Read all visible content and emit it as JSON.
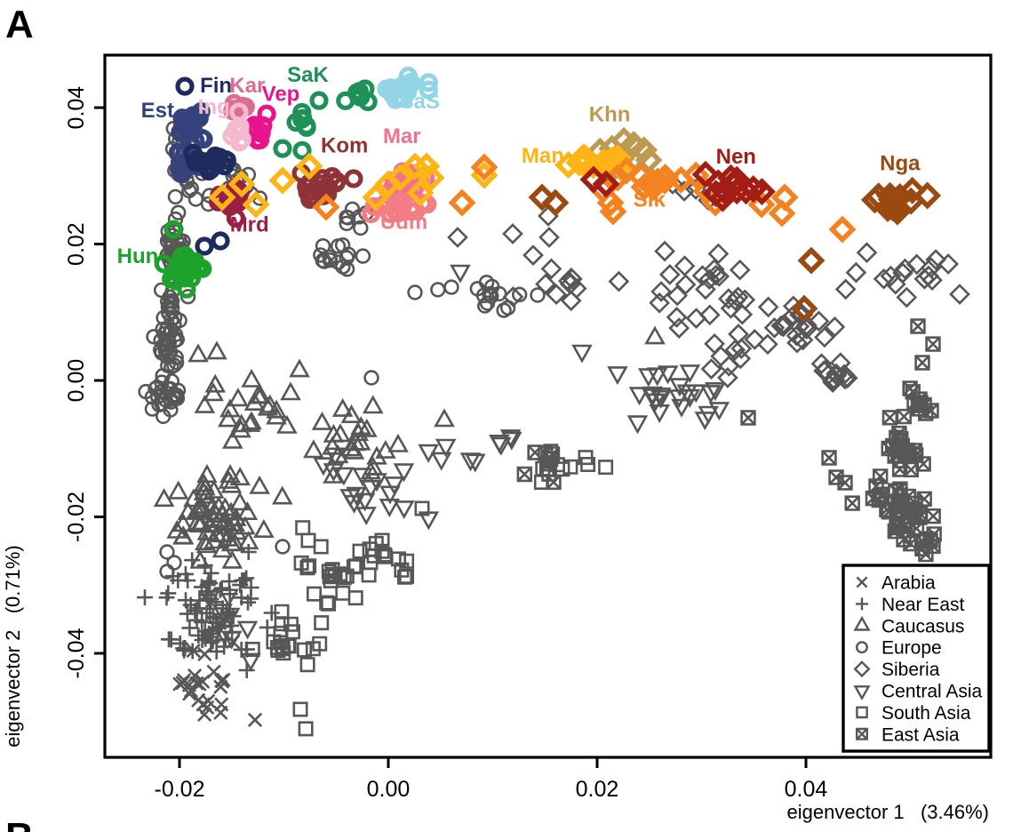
{
  "panel": {
    "label": "A",
    "next_label": "B"
  },
  "axes": {
    "x": {
      "label": "eigenvector 1   (3.46%)",
      "ticks": [
        -0.02,
        0.0,
        0.02,
        0.04
      ],
      "tick_labels": [
        "-0.02",
        "0.00",
        "0.02",
        "0.04"
      ]
    },
    "y": {
      "label": "eigenvector 2   (0.71%)",
      "ticks": [
        0.04,
        0.02,
        0.0,
        -0.02,
        -0.04
      ],
      "tick_labels": [
        "0.04",
        "0.02",
        "0.00",
        "-0.02",
        "-0.04"
      ]
    }
  },
  "legend": {
    "entries": [
      {
        "shape": "x",
        "label": "Arabia"
      },
      {
        "shape": "plus",
        "label": "Near East"
      },
      {
        "shape": "triangle",
        "label": "Caucasus"
      },
      {
        "shape": "circle",
        "label": "Europe"
      },
      {
        "shape": "diamond",
        "label": "Siberia"
      },
      {
        "shape": "triangle-down",
        "label": "Central Asia"
      },
      {
        "shape": "square",
        "label": "South Asia"
      },
      {
        "shape": "square-x",
        "label": "East Asia"
      }
    ]
  },
  "chart_data": {
    "type": "scatter",
    "title": "",
    "xlabel": "eigenvector 1 (3.46%)",
    "ylabel": "eigenvector 2 (0.71%)",
    "xlim": [
      -0.02715,
      0.0577
    ],
    "ylim": [
      -0.05525,
      0.0477
    ],
    "grid": false,
    "legend_position": "bottom-right",
    "point_color_gray": "#575757",
    "regions": [
      {
        "id": "arabia",
        "label": "Arabia",
        "marker": "x",
        "clusters": [
          [
            -0.01813,
            -0.04521,
            0.0024,
            0.0042,
            24
          ]
        ],
        "points": [
          [
            -0.01277,
            -0.04977
          ],
          [
            -0.01489,
            -0.03831
          ]
        ]
      },
      {
        "id": "neareast",
        "label": "Near East",
        "marker": "plus",
        "clusters": [
          [
            -0.01745,
            -0.03388,
            0.0036,
            0.0068,
            80
          ]
        ],
        "points": []
      },
      {
        "id": "caucasus",
        "label": "Caucasus",
        "marker": "triangle",
        "clusters": [
          [
            -0.0166,
            -0.02046,
            0.0036,
            0.005,
            60
          ],
          [
            -0.01294,
            -0.00521,
            0.0041,
            0.0046,
            20
          ],
          [
            -0.00298,
            -0.01003,
            0.0043,
            0.0039,
            22
          ]
        ],
        "points": [
          [
            -0.01821,
            0.00365
          ],
          [
            -0.01643,
            0.00404
          ],
          [
            -0.00936,
            -0.00195
          ],
          [
            -0.00851,
            0.00143
          ],
          [
            0.00536,
            -0.00586
          ],
          [
            0.02553,
            0.00625
          ]
        ]
      },
      {
        "id": "europe",
        "label": "Europe",
        "marker": "circle",
        "clusters": [
          [
            -0.01957,
            0.03362,
            0.0012,
            0.0037,
            32
          ],
          [
            -0.02034,
            0.01954,
            0.0009,
            0.005,
            38
          ],
          [
            -0.02094,
            0.00651,
            0.0009,
            0.0055,
            40
          ],
          [
            -0.02136,
            -0.00248,
            0.0013,
            0.0022,
            26
          ],
          [
            -0.01549,
            0.02815,
            0.0032,
            0.0029,
            22
          ],
          [
            -0.00553,
            0.01798,
            0.0022,
            0.0021,
            14
          ],
          [
            -0.00357,
            0.02385,
            0.0014,
            0.0012,
            7
          ],
          [
            0.00919,
            0.01277,
            0.0036,
            0.0021,
            14
          ]
        ],
        "points": [
          [
            0.00255,
            0.0129
          ],
          [
            0.00604,
            0.01368
          ],
          [
            -0.00162,
            0.00039
          ],
          [
            -0.01013,
            -0.02436
          ],
          [
            -0.02119,
            -0.02515
          ],
          [
            -0.02051,
            -0.02671
          ],
          [
            -0.02119,
            -0.02801
          ],
          [
            0.0143,
            0.01251
          ]
        ]
      },
      {
        "id": "siberia",
        "label": "Siberia",
        "marker": "diamond",
        "clusters": [
          [
            0.02919,
            0.01277,
            0.0047,
            0.0042,
            26
          ],
          [
            0.03855,
            0.0086,
            0.0036,
            0.0039,
            20
          ],
          [
            0.04315,
            0.00052,
            0.0015,
            0.0018,
            14
          ],
          [
            0.04877,
            0.01538,
            0.0036,
            0.0029,
            14
          ],
          [
            0.0166,
            0.01329,
            0.0036,
            0.0037,
            10
          ],
          [
            0.03277,
            0.00469,
            0.0024,
            0.0031,
            10
          ]
        ],
        "points": [
          [
            0.00664,
            0.02098
          ],
          [
            0.01191,
            0.0215
          ],
          [
            0.01387,
            0.01837
          ],
          [
            0.01532,
            0.02411
          ],
          [
            0.0154,
            0.02098
          ],
          [
            0.02723,
            0.0288
          ],
          [
            0.02834,
            0.02776
          ],
          [
            0.02945,
            0.02802
          ],
          [
            0.03064,
            0.02645
          ],
          [
            0.05472,
            0.01264
          ],
          [
            0.05362,
            0.01707
          ],
          [
            0.05243,
            0.01772
          ]
        ]
      },
      {
        "id": "centralasia",
        "label": "Central Asia",
        "marker": "triangle-down",
        "clusters": [
          [
            -0.01566,
            -0.03544,
            0.0019,
            0.0037,
            10
          ],
          [
            -0.00315,
            -0.01564,
            0.0044,
            0.0037,
            18
          ],
          [
            0.00579,
            -0.01094,
            0.0022,
            0.0016,
            5
          ],
          [
            0.02732,
            -0.00235,
            0.0041,
            0.0034,
            24
          ],
          [
            0.01149,
            -0.00938,
            0.0015,
            0.0016,
            4
          ]
        ],
        "points": [
          [
            0.00689,
            0.01603
          ],
          [
            0.01855,
            0.0043
          ],
          [
            -0.01319,
            -0.04091
          ]
        ]
      },
      {
        "id": "southasia",
        "label": "South Asia",
        "marker": "square",
        "clusters": [
          [
            -0.00979,
            -0.03831,
            0.0024,
            0.0037,
            20
          ],
          [
            -0.00553,
            -0.02827,
            0.0032,
            0.005,
            22
          ],
          [
            0.00026,
            -0.02658,
            0.002,
            0.0026,
            13
          ],
          [
            0.0177,
            -0.0129,
            0.0034,
            0.0026,
            11
          ]
        ],
        "points": [
          [
            0.00323,
            -0.01876
          ],
          [
            -0.00766,
            -0.02345
          ],
          [
            -0.0006,
            -0.02345
          ],
          [
            -0.00843,
            -0.04821
          ],
          [
            -0.00791,
            -0.05107
          ]
        ]
      },
      {
        "id": "eastasia",
        "label": "East Asia",
        "marker": "square-x",
        "clusters": [
          [
            0.04987,
            -0.02007,
            0.002,
            0.0042,
            36
          ],
          [
            0.0497,
            -0.01003,
            0.0017,
            0.0034,
            22
          ],
          [
            0.05047,
            -0.00352,
            0.0011,
            0.0021,
            7
          ],
          [
            0.04579,
            -0.01746,
            0.0019,
            0.0012,
            5
          ],
          [
            0.01557,
            -0.01199,
            0.0021,
            0.002,
            7
          ]
        ],
        "points": [
          [
            0.03447,
            -0.00547
          ],
          [
            0.04221,
            -0.01133
          ],
          [
            0.04289,
            -0.0142
          ],
          [
            0.05115,
            0.00261
          ],
          [
            0.04996,
            -0.00117
          ],
          [
            0.05098,
            -0.00326
          ],
          [
            0.052,
            -0.00443
          ],
          [
            0.04374,
            -0.01498
          ],
          [
            0.04672,
            -0.0155
          ],
          [
            0.04936,
            -0.02332
          ],
          [
            0.05191,
            -0.02345
          ],
          [
            0.05217,
            0.00534
          ],
          [
            0.05072,
            0.00795
          ]
        ]
      }
    ],
    "populations": [
      {
        "id": "est",
        "label": "Est",
        "color": "#35427c",
        "marker": "circle",
        "label_at": [
          -0.0221,
          0.0386
        ],
        "clusters": [
          [
            -0.01889,
            0.03726,
            0.0012,
            0.0021,
            20
          ],
          [
            -0.01932,
            0.03231,
            0.0009,
            0.0024,
            14
          ]
        ],
        "points": []
      },
      {
        "id": "fin",
        "label": "Fin",
        "color": "#1f2a5e",
        "marker": "circle",
        "label_at": [
          -0.0165,
          0.0422
        ],
        "clusters": [
          [
            -0.01804,
            0.03257,
            0.0014,
            0.0016,
            12
          ],
          [
            -0.01591,
            0.03192,
            0.0007,
            0.001,
            5
          ]
        ],
        "points": [
          [
            -0.01949,
            0.04313
          ],
          [
            -0.01762,
            0.01968
          ],
          [
            -0.01609,
            0.02046
          ]
        ]
      },
      {
        "id": "kar",
        "label": "Kar",
        "color": "#db6d90",
        "marker": "circle",
        "label_at": [
          -0.0135,
          0.0422
        ],
        "clusters": [
          [
            -0.01438,
            0.04,
            0.0007,
            0.0008,
            7
          ]
        ],
        "points": []
      },
      {
        "id": "vep",
        "label": "Vep",
        "color": "#e8148c",
        "marker": "circle",
        "label_at": [
          -0.0103,
          0.041
        ],
        "clusters": [
          [
            -0.01251,
            0.03674,
            0.0009,
            0.002,
            13
          ]
        ],
        "points": []
      },
      {
        "id": "ing",
        "label": "Ing",
        "color": "#f4b9cf",
        "marker": "circle",
        "label_at": [
          -0.0167,
          0.0391
        ],
        "clusters": [
          [
            -0.01455,
            0.03648,
            0.0005,
            0.0018,
            8
          ]
        ],
        "points": []
      },
      {
        "id": "sak",
        "label": "SaK",
        "color": "#1f9158",
        "marker": "circle",
        "label_at": [
          -0.0077,
          0.0438
        ],
        "clusters": [
          [
            -0.00826,
            0.03739,
            0.0008,
            0.0021,
            7
          ],
          [
            -0.00281,
            0.04169,
            0.0009,
            0.0014,
            7
          ]
        ],
        "points": [
          [
            -0.01013,
            0.03401
          ],
          [
            -0.00664,
            0.04104
          ]
        ]
      },
      {
        "id": "sas",
        "label": "SaS",
        "color": "#93d4e6",
        "marker": "circle",
        "label_at": [
          0.003,
          0.0399
        ],
        "clusters": [
          [
            0.00128,
            0.04287,
            0.002,
            0.0016,
            18
          ]
        ],
        "points": []
      },
      {
        "id": "kom",
        "label": "Kom",
        "color": "#8e3336",
        "marker": "circle",
        "label_at": [
          -0.0042,
          0.0334
        ],
        "clusters": [
          [
            -0.00638,
            0.02867,
            0.0019,
            0.0018,
            20
          ]
        ],
        "points": []
      },
      {
        "id": "mar",
        "label": "Mar",
        "color": "#f0718e",
        "marker": "circle",
        "label_at": [
          0.0013,
          0.0348
        ],
        "clusters": [
          [
            0.0023,
            0.02919,
            0.0019,
            0.0016,
            15
          ]
        ],
        "points": []
      },
      {
        "id": "udm",
        "label": "Udm",
        "color": "#f27d85",
        "marker": "circle",
        "label_at": [
          0.0015,
          0.0222
        ],
        "clusters": [
          [
            0.00102,
            0.02515,
            0.0019,
            0.0014,
            15
          ]
        ],
        "points": []
      },
      {
        "id": "mrd",
        "label": "Mrd",
        "color": "#9b1f44",
        "marker": "circle",
        "label_at": [
          -0.0133,
          0.0218
        ],
        "clusters": [
          [
            -0.01481,
            0.02619,
            0.0013,
            0.0016,
            13
          ]
        ],
        "points": []
      },
      {
        "id": "hun",
        "label": "Hun",
        "color": "#1da32b",
        "marker": "circle",
        "label_at": [
          -0.024,
          0.0172
        ],
        "clusters": [
          [
            -0.01974,
            0.01577,
            0.0013,
            0.0024,
            20
          ]
        ],
        "points": [
          [
            -0.0206,
            0.02215
          ]
        ]
      },
      {
        "id": "khn",
        "label": "Khn",
        "color": "#bd9a51",
        "marker": "diamond",
        "label_at": [
          0.0212,
          0.038
        ],
        "clusters": [
          [
            0.02187,
            0.03244,
            0.0019,
            0.002,
            13
          ]
        ],
        "points": [
          [
            0.02494,
            0.03231
          ]
        ]
      },
      {
        "id": "man",
        "label": "Man",
        "color": "#fdb414",
        "marker": "diamond",
        "label_at": [
          0.0148,
          0.0319
        ],
        "clusters": [
          [
            0.01966,
            0.03179,
            0.0017,
            0.0016,
            15
          ]
        ],
        "points": [
          [
            -0.01591,
            0.02685
          ],
          [
            -0.01404,
            0.0288
          ],
          [
            -0.01268,
            0.0258
          ],
          [
            -0.01013,
            0.02932
          ],
          [
            -0.00757,
            0.0314
          ],
          [
            -0.00119,
            0.02685
          ],
          [
            0.0,
            0.0288
          ],
          [
            0.00111,
            0.02971
          ],
          [
            0.00255,
            0.0314
          ],
          [
            0.00366,
            0.0314
          ],
          [
            0.00409,
            0.02971
          ],
          [
            0.00306,
            0.0275
          ],
          [
            0.00919,
            0.0301
          ]
        ]
      },
      {
        "id": "slk",
        "label": "Slk",
        "color": "#f58220",
        "marker": "diamond",
        "label_at": [
          0.025,
          0.0255
        ],
        "clusters": [
          [
            0.02519,
            0.02893,
            0.0024,
            0.0017,
            9
          ]
        ],
        "points": [
          [
            -0.00596,
            0.02541
          ],
          [
            0.00706,
            0.02606
          ],
          [
            0.00919,
            0.03127
          ],
          [
            0.02051,
            0.02802
          ],
          [
            0.02128,
            0.02606
          ],
          [
            0.02153,
            0.02476
          ],
          [
            0.02196,
            0.02971
          ],
          [
            0.02281,
            0.03075
          ],
          [
            0.02945,
            0.0301
          ],
          [
            0.03047,
            0.02776
          ],
          [
            0.03132,
            0.02606
          ],
          [
            0.03574,
            0.0258
          ],
          [
            0.0377,
            0.0245
          ],
          [
            0.03796,
            0.02685
          ],
          [
            0.04349,
            0.02215
          ]
        ]
      },
      {
        "id": "nen",
        "label": "Nen",
        "color": "#a41d15",
        "marker": "diamond",
        "label_at": [
          0.0333,
          0.0318
        ],
        "clusters": [
          [
            0.03328,
            0.02802,
            0.0021,
            0.0016,
            13
          ]
        ],
        "points": [
          [
            0.01966,
            0.02945
          ],
          [
            0.02085,
            0.0288
          ]
        ]
      },
      {
        "id": "nga",
        "label": "Nga",
        "color": "#9a4a10",
        "marker": "diamond",
        "label_at": [
          0.049,
          0.0308
        ],
        "clusters": [
          [
            0.04894,
            0.02659,
            0.0019,
            0.0014,
            12
          ]
        ],
        "points": [
          [
            0.01472,
            0.02685
          ],
          [
            0.016,
            0.02606
          ],
          [
            0.04051,
            0.01759
          ],
          [
            0.03983,
            0.01055
          ]
        ]
      }
    ]
  }
}
